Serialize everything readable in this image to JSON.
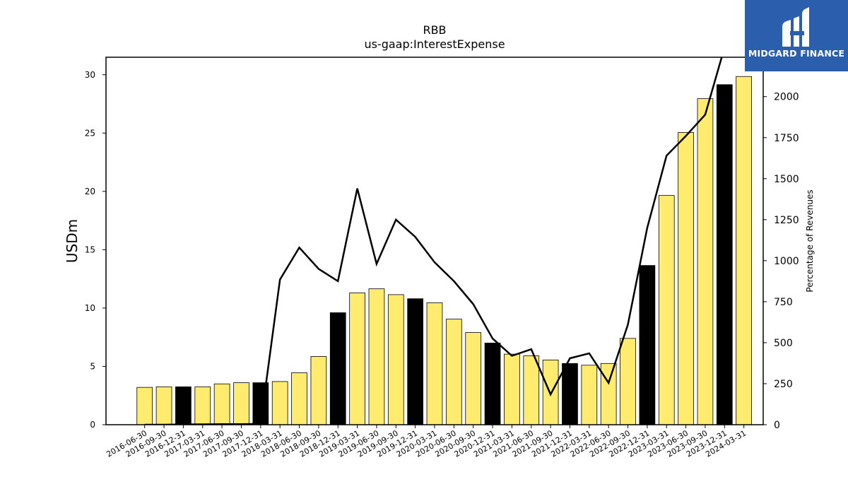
{
  "chart_data": {
    "type": "bar",
    "title": "RBB",
    "subtitle": "us-gaap:InterestExpense",
    "ylabel": "USDm",
    "y2label": "Percentage of Revenues",
    "ylim": [
      0,
      31.5
    ],
    "y2lim": [
      0,
      2240
    ],
    "yticks": [
      0,
      5,
      10,
      15,
      20,
      25,
      30
    ],
    "y2ticks": [
      0,
      250,
      500,
      750,
      1000,
      1250,
      1500,
      1750,
      2000
    ],
    "categories": [
      "2016-06-30",
      "2016-09-30",
      "2016-12-31",
      "2017-03-31",
      "2017-06-30",
      "2017-09-30",
      "2017-12-31",
      "2018-03-31",
      "2018-06-30",
      "2018-09-30",
      "2018-12-31",
      "2019-03-31",
      "2019-06-30",
      "2019-09-30",
      "2019-12-31",
      "2020-03-31",
      "2020-06-30",
      "2020-09-30",
      "2020-12-31",
      "2021-03-31",
      "2021-06-30",
      "2021-09-30",
      "2021-12-31",
      "2022-03-31",
      "2022-06-30",
      "2022-09-30",
      "2022-12-31",
      "2023-03-31",
      "2023-06-30",
      "2023-09-30",
      "2023-12-31",
      "2024-03-31"
    ],
    "series": [
      {
        "type": "bar",
        "values": [
          3.2,
          3.25,
          3.25,
          3.25,
          3.5,
          3.6,
          3.6,
          3.7,
          4.45,
          5.85,
          9.6,
          11.3,
          11.65,
          11.15,
          10.8,
          10.45,
          9.05,
          7.9,
          7.0,
          6.05,
          5.9,
          5.55,
          5.25,
          5.1,
          5.25,
          7.4,
          13.65,
          19.65,
          25.05,
          27.95,
          29.15,
          29.85
        ],
        "highlight": [
          false,
          false,
          true,
          false,
          false,
          false,
          true,
          false,
          false,
          false,
          true,
          false,
          false,
          false,
          true,
          false,
          false,
          false,
          true,
          false,
          false,
          false,
          true,
          false,
          false,
          false,
          true,
          false,
          false,
          false,
          true,
          false
        ],
        "color": "#ffec6e",
        "highlight_color": "#000000"
      },
      {
        "type": "line",
        "axis": "right",
        "values": [
          0,
          0,
          2,
          2,
          3,
          3,
          5,
          885,
          1080,
          950,
          875,
          1440,
          980,
          1250,
          1145,
          990,
          875,
          735,
          525,
          420,
          460,
          185,
          405,
          435,
          255,
          610,
          1200,
          1640,
          1760,
          1890,
          2300,
          null
        ],
        "color": "#000000"
      }
    ]
  },
  "logo": {
    "text": "MIDGARD FINANCE"
  }
}
